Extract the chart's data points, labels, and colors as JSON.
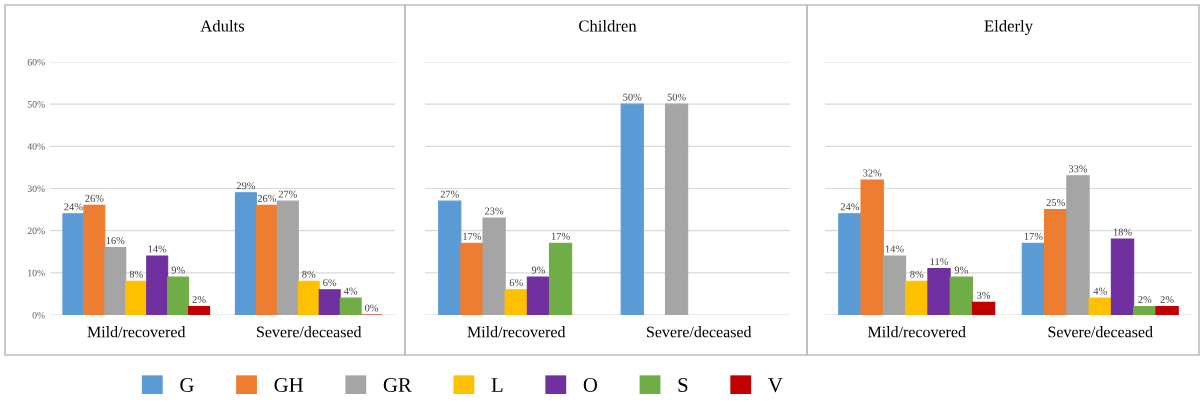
{
  "chart_data": [
    {
      "type": "bar",
      "title": "Adults",
      "categories": [
        "Mild/recovered",
        "Severe/deceased"
      ],
      "ylim": [
        0,
        60
      ],
      "yticks": [
        {
          "value": 0,
          "label": "0%"
        },
        {
          "value": 10,
          "label": "10%"
        },
        {
          "value": 20,
          "label": "20%"
        },
        {
          "value": 30,
          "label": "30%"
        },
        {
          "value": 40,
          "label": "40%"
        },
        {
          "value": 50,
          "label": "50%"
        },
        {
          "value": 60,
          "label": "60%"
        }
      ],
      "grid": "y",
      "legend": "bottom",
      "series": [
        {
          "name": "G",
          "color": "#5b9bd5",
          "values": [
            24,
            29
          ],
          "value_labels": [
            "24%",
            "29%"
          ]
        },
        {
          "name": "GH",
          "color": "#ed7d31",
          "values": [
            26,
            26
          ],
          "value_labels": [
            "26%",
            "26%"
          ]
        },
        {
          "name": "GR",
          "color": "#a5a5a5",
          "values": [
            16,
            27
          ],
          "value_labels": [
            "16%",
            "27%"
          ]
        },
        {
          "name": "L",
          "color": "#ffc000",
          "values": [
            8,
            8
          ],
          "value_labels": [
            "8%",
            "8%"
          ]
        },
        {
          "name": "O",
          "color": "#7030a0",
          "values": [
            14,
            6
          ],
          "value_labels": [
            "14%",
            "6%"
          ]
        },
        {
          "name": "S",
          "color": "#70ad47",
          "values": [
            9,
            4
          ],
          "value_labels": [
            "9%",
            "4%"
          ]
        },
        {
          "name": "V",
          "color": "#c00000",
          "values": [
            2,
            0
          ],
          "value_labels": [
            "2%",
            "0%"
          ]
        }
      ]
    },
    {
      "type": "bar",
      "title": "Children",
      "categories": [
        "Mild/recovered",
        "Severe/deceased"
      ],
      "ylim": [
        0,
        60
      ],
      "yticks": [
        0,
        10,
        20,
        30,
        40,
        50,
        60
      ],
      "grid": "y",
      "tick_labels": "x",
      "series": [
        {
          "color": "#5b9bd5",
          "values": [
            27,
            50
          ],
          "value_labels": [
            "27%",
            "50%"
          ]
        },
        {
          "color": "#ed7d31",
          "values": [
            17,
            null
          ],
          "value_labels": [
            "17%",
            null
          ]
        },
        {
          "color": "#a5a5a5",
          "values": [
            23,
            50
          ],
          "value_labels": [
            "23%",
            "50%"
          ]
        },
        {
          "color": "#ffc000",
          "values": [
            6,
            null
          ],
          "value_labels": [
            "6%",
            null
          ]
        },
        {
          "color": "#7030a0",
          "values": [
            9,
            null
          ],
          "value_labels": [
            "9%",
            null
          ]
        },
        {
          "color": "#70ad47",
          "values": [
            17,
            null
          ],
          "value_labels": [
            "17%",
            null
          ]
        },
        {
          "color": "#c00000",
          "values": [
            null,
            null
          ],
          "value_labels": [
            null,
            null
          ]
        }
      ]
    },
    {
      "type": "bar",
      "title": "Elderly",
      "categories": [
        "Mild/recovered",
        "Severe/deceased"
      ],
      "ylim": [
        0,
        60
      ],
      "yticks": [
        0,
        10,
        20,
        30,
        40,
        50,
        60
      ],
      "grid": "y",
      "tick_labels": "x",
      "series": [
        {
          "color": "#5b9bd5",
          "values": [
            24,
            17
          ],
          "value_labels": [
            "24%",
            "17%"
          ]
        },
        {
          "color": "#ed7d31",
          "values": [
            32,
            25
          ],
          "value_labels": [
            "32%",
            "25%"
          ]
        },
        {
          "color": "#a5a5a5",
          "values": [
            14,
            33
          ],
          "value_labels": [
            "14%",
            "33%"
          ]
        },
        {
          "color": "#ffc000",
          "values": [
            8,
            4
          ],
          "value_labels": [
            "8%",
            "4%"
          ]
        },
        {
          "color": "#7030a0",
          "values": [
            11,
            18
          ],
          "value_labels": [
            "11%",
            "18%"
          ]
        },
        {
          "color": "#70ad47",
          "values": [
            9,
            2
          ],
          "value_labels": [
            "9%",
            "2%"
          ]
        },
        {
          "color": "#c00000",
          "values": [
            3,
            2
          ],
          "value_labels": [
            "3%",
            "2%"
          ]
        }
      ]
    }
  ]
}
